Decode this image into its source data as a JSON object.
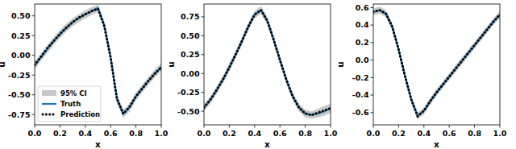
{
  "chart_data": [
    {
      "type": "line",
      "x_label": "x",
      "y_label": "u",
      "legend": "lower left",
      "x": [
        0,
        0.05,
        0.1,
        0.15,
        0.2,
        0.25,
        0.3,
        0.35,
        0.4,
        0.45,
        0.5,
        0.55,
        0.6,
        0.65,
        0.7,
        0.75,
        0.8,
        0.85,
        0.9,
        0.95,
        1.0
      ],
      "xlim": [
        0,
        1
      ],
      "xticks": [
        {
          "value": 0,
          "label": "0.0"
        },
        0.2,
        0.4,
        0.6,
        0.8,
        {
          "value": 1,
          "label": "1.0"
        }
      ],
      "ylim": [
        -0.88,
        0.65
      ],
      "yticks": [
        {
          "value": -0.75,
          "label": "-0.75"
        },
        {
          "value": -0.5,
          "label": "-0.50"
        },
        {
          "value": -0.25,
          "label": "-0.25"
        },
        {
          "value": 0,
          "label": "0.00"
        },
        {
          "value": 0.25,
          "label": "0.25"
        },
        {
          "value": 0.5,
          "label": "0.50"
        }
      ],
      "series": [
        {
          "name": "95% CI",
          "type": "band",
          "color": "#c8c8c8",
          "lower": [
            -0.18,
            -0.07,
            0.03,
            0.13,
            0.22,
            0.3,
            0.37,
            0.42,
            0.47,
            0.51,
            0.55,
            0.33,
            -0.07,
            -0.6,
            -0.79,
            -0.71,
            -0.57,
            -0.47,
            -0.37,
            -0.28,
            -0.2
          ],
          "upper": [
            -0.08,
            0.03,
            0.13,
            0.23,
            0.32,
            0.4,
            0.47,
            0.52,
            0.57,
            0.61,
            0.64,
            0.43,
            0.03,
            -0.5,
            -0.69,
            -0.61,
            -0.47,
            -0.37,
            -0.27,
            -0.18,
            -0.1
          ]
        },
        {
          "name": "Truth",
          "type": "line",
          "color": "#1f77b4",
          "line_style": "solid",
          "values": [
            -0.13,
            -0.02,
            0.08,
            0.18,
            0.27,
            0.35,
            0.42,
            0.47,
            0.52,
            0.56,
            0.6,
            0.38,
            -0.02,
            -0.55,
            -0.74,
            -0.66,
            -0.52,
            -0.42,
            -0.32,
            -0.23,
            -0.15
          ]
        },
        {
          "name": "Prediction",
          "type": "line",
          "color": "#000000",
          "line_style": "dotted",
          "values": [
            -0.12,
            -0.02,
            0.09,
            0.18,
            0.27,
            0.35,
            0.42,
            0.48,
            0.52,
            0.56,
            0.59,
            0.37,
            -0.03,
            -0.55,
            -0.74,
            -0.65,
            -0.52,
            -0.42,
            -0.32,
            -0.23,
            -0.15
          ]
        }
      ]
    },
    {
      "type": "line",
      "x_label": "x",
      "y_label": "u",
      "x": [
        0,
        0.05,
        0.1,
        0.15,
        0.2,
        0.25,
        0.3,
        0.35,
        0.4,
        0.45,
        0.5,
        0.55,
        0.6,
        0.65,
        0.7,
        0.75,
        0.8,
        0.85,
        0.9,
        0.95,
        1.0
      ],
      "xlim": [
        0,
        1
      ],
      "xticks": [
        {
          "value": 0,
          "label": "0.0"
        },
        0.2,
        0.4,
        0.6,
        0.8,
        {
          "value": 1,
          "label": "1.0"
        }
      ],
      "ylim": [
        -0.68,
        0.92
      ],
      "yticks": [
        {
          "value": -0.5,
          "label": "-0.50"
        },
        {
          "value": -0.25,
          "label": "-0.25"
        },
        {
          "value": 0,
          "label": "0.00"
        },
        {
          "value": 0.25,
          "label": "0.25"
        },
        {
          "value": 0.5,
          "label": "0.50"
        },
        {
          "value": 0.75,
          "label": "0.75"
        }
      ],
      "series": [
        {
          "name": "95% CI",
          "type": "band",
          "color": "#c8c8c8",
          "lower": [
            -0.5,
            -0.4,
            -0.27,
            -0.13,
            0.03,
            0.2,
            0.38,
            0.57,
            0.73,
            0.79,
            0.65,
            0.4,
            0.13,
            -0.13,
            -0.35,
            -0.5,
            -0.58,
            -0.6,
            -0.58,
            -0.56,
            -0.52
          ],
          "upper": [
            -0.4,
            -0.3,
            -0.17,
            -0.03,
            0.13,
            0.3,
            0.48,
            0.67,
            0.83,
            0.89,
            0.75,
            0.5,
            0.23,
            -0.03,
            -0.25,
            -0.4,
            -0.48,
            -0.5,
            -0.47,
            -0.43,
            -0.4
          ]
        },
        {
          "name": "Truth",
          "type": "line",
          "color": "#1f77b4",
          "line_style": "solid",
          "values": [
            -0.45,
            -0.35,
            -0.22,
            -0.08,
            0.08,
            0.25,
            0.43,
            0.62,
            0.78,
            0.84,
            0.7,
            0.45,
            0.18,
            -0.08,
            -0.3,
            -0.45,
            -0.53,
            -0.55,
            -0.53,
            -0.5,
            -0.46
          ]
        },
        {
          "name": "Prediction",
          "type": "line",
          "color": "#000000",
          "line_style": "dotted",
          "values": [
            -0.45,
            -0.35,
            -0.22,
            -0.08,
            0.08,
            0.25,
            0.43,
            0.62,
            0.78,
            0.84,
            0.7,
            0.45,
            0.18,
            -0.08,
            -0.3,
            -0.45,
            -0.53,
            -0.55,
            -0.52,
            -0.49,
            -0.46
          ]
        }
      ]
    },
    {
      "type": "line",
      "x_label": "x",
      "y_label": "u",
      "x": [
        0,
        0.05,
        0.1,
        0.15,
        0.2,
        0.25,
        0.3,
        0.35,
        0.4,
        0.45,
        0.5,
        0.55,
        0.6,
        0.65,
        0.7,
        0.75,
        0.8,
        0.85,
        0.9,
        0.95,
        1.0
      ],
      "xlim": [
        0,
        1
      ],
      "xticks": [
        {
          "value": 0,
          "label": "0.0"
        },
        0.2,
        0.4,
        0.6,
        0.8,
        {
          "value": 1,
          "label": "1.0"
        }
      ],
      "ylim": [
        -0.74,
        0.64
      ],
      "yticks": [
        -0.6,
        -0.4,
        -0.2,
        {
          "value": 0,
          "label": "0.0"
        },
        0.2,
        0.4,
        0.6
      ],
      "series": [
        {
          "name": "95% CI",
          "type": "band",
          "color": "#c8c8c8",
          "lower": [
            0.51,
            0.53,
            0.49,
            0.34,
            0.08,
            -0.22,
            -0.49,
            -0.68,
            -0.62,
            -0.51,
            -0.41,
            -0.32,
            -0.23,
            -0.14,
            -0.05,
            0.04,
            0.13,
            0.22,
            0.31,
            0.4,
            0.48
          ],
          "upper": [
            0.59,
            0.61,
            0.57,
            0.42,
            0.16,
            -0.14,
            -0.41,
            -0.6,
            -0.54,
            -0.43,
            -0.33,
            -0.24,
            -0.15,
            -0.06,
            0.03,
            0.12,
            0.21,
            0.3,
            0.39,
            0.48,
            0.56
          ]
        },
        {
          "name": "Truth",
          "type": "line",
          "color": "#1f77b4",
          "line_style": "solid",
          "values": [
            0.55,
            0.57,
            0.53,
            0.38,
            0.12,
            -0.18,
            -0.45,
            -0.64,
            -0.58,
            -0.47,
            -0.37,
            -0.28,
            -0.19,
            -0.1,
            -0.01,
            0.08,
            0.17,
            0.26,
            0.35,
            0.44,
            0.52
          ]
        },
        {
          "name": "Prediction",
          "type": "line",
          "color": "#000000",
          "line_style": "dotted",
          "values": [
            0.55,
            0.57,
            0.53,
            0.38,
            0.12,
            -0.18,
            -0.45,
            -0.64,
            -0.58,
            -0.47,
            -0.37,
            -0.28,
            -0.19,
            -0.1,
            -0.01,
            0.08,
            0.17,
            0.26,
            0.35,
            0.44,
            0.52
          ]
        }
      ]
    }
  ]
}
